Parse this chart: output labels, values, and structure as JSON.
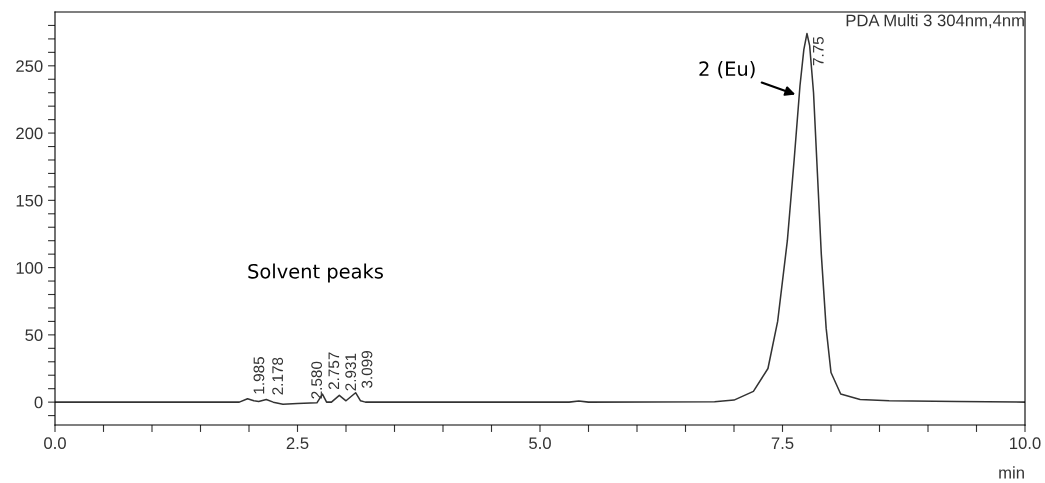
{
  "chart_data": {
    "type": "line",
    "xlabel": "min",
    "x": [
      0,
      1.9,
      1.985,
      2.05,
      2.1,
      2.178,
      2.25,
      2.35,
      2.5,
      2.7,
      2.757,
      2.8,
      2.85,
      2.931,
      3.0,
      3.099,
      3.15,
      3.2,
      5.3,
      5.4,
      5.5,
      6.8,
      7.0,
      7.2,
      7.35,
      7.45,
      7.55,
      7.62,
      7.68,
      7.72,
      7.752,
      7.78,
      7.82,
      7.86,
      7.9,
      7.95,
      8.0,
      8.1,
      8.3,
      8.6,
      9.3,
      10
    ],
    "series": [
      {
        "color": "#333333",
        "values": [
          0,
          0,
          2.5,
          1,
          0.5,
          2,
          0,
          -1.5,
          -1,
          -0.5,
          6,
          0,
          0,
          5,
          1,
          7,
          1,
          0,
          0,
          0.8,
          0,
          0.3,
          1.5,
          8,
          25,
          60,
          120,
          180,
          235,
          262,
          274,
          265,
          230,
          170,
          110,
          55,
          22,
          6,
          2,
          1,
          0.5,
          0
        ]
      }
    ],
    "xlim": [
      0,
      10
    ],
    "ylim": [
      -17,
      290
    ],
    "xticks": [
      {
        "value": 0,
        "label": "0.0"
      },
      {
        "value": 0.5,
        "label": null
      },
      {
        "value": 1.0,
        "label": null
      },
      {
        "value": 1.5,
        "label": null
      },
      {
        "value": 2.0,
        "label": null
      },
      {
        "value": 2.5,
        "label": "2.5"
      },
      {
        "value": 3.0,
        "label": null
      },
      {
        "value": 3.5,
        "label": null
      },
      {
        "value": 4.0,
        "label": null
      },
      {
        "value": 4.5,
        "label": null
      },
      {
        "value": 5.0,
        "label": "5.0"
      },
      {
        "value": 5.5,
        "label": null
      },
      {
        "value": 6.0,
        "label": null
      },
      {
        "value": 6.5,
        "label": null
      },
      {
        "value": 7.0,
        "label": null
      },
      {
        "value": 7.5,
        "label": "7.5"
      },
      {
        "value": 8.0,
        "label": null
      },
      {
        "value": 8.5,
        "label": null
      },
      {
        "value": 9.0,
        "label": null
      },
      {
        "value": 9.5,
        "label": null
      },
      {
        "value": 10,
        "label": "10.0"
      }
    ],
    "yticks": [
      {
        "value": -10,
        "label": null
      },
      0,
      {
        "value": 10,
        "label": null
      },
      {
        "value": 20,
        "label": null
      },
      {
        "value": 30,
        "label": null
      },
      {
        "value": 40,
        "label": null
      },
      50,
      {
        "value": 60,
        "label": null
      },
      {
        "value": 70,
        "label": null
      },
      {
        "value": 80,
        "label": null
      },
      {
        "value": 90,
        "label": null
      },
      100,
      {
        "value": 110,
        "label": null
      },
      {
        "value": 120,
        "label": null
      },
      {
        "value": 130,
        "label": null
      },
      {
        "value": 140,
        "label": null
      },
      150,
      {
        "value": 160,
        "label": null
      },
      {
        "value": 170,
        "label": null
      },
      {
        "value": 180,
        "label": null
      },
      {
        "value": 190,
        "label": null
      },
      200,
      {
        "value": 210,
        "label": null
      },
      {
        "value": 220,
        "label": null
      },
      {
        "value": 230,
        "label": null
      },
      {
        "value": 240,
        "label": null
      },
      250,
      {
        "value": 260,
        "label": null
      },
      {
        "value": 270,
        "label": null
      },
      {
        "value": 280,
        "label": null
      }
    ],
    "grid": false,
    "marker": "none",
    "line_style": "solid",
    "annotations": [
      "PDA Multi 3 304nm,4nm",
      "Solvent peaks",
      {
        "text": "2 (Eu)",
        "x": 7.66,
        "y": 228
      },
      {
        "text": "1.985",
        "x": 1.985,
        "y": 2.5
      },
      {
        "text": "2.178",
        "x": 2.178,
        "y": 2
      },
      {
        "text": "2.580",
        "x": 2.58,
        "y": -1
      },
      {
        "text": "2.757",
        "x": 2.757,
        "y": 6
      },
      {
        "text": "2.931",
        "x": 2.931,
        "y": 5
      },
      {
        "text": "3.099",
        "x": 3.099,
        "y": 7
      },
      {
        "text": "7.75",
        "x": 7.752,
        "y": 274
      }
    ]
  }
}
